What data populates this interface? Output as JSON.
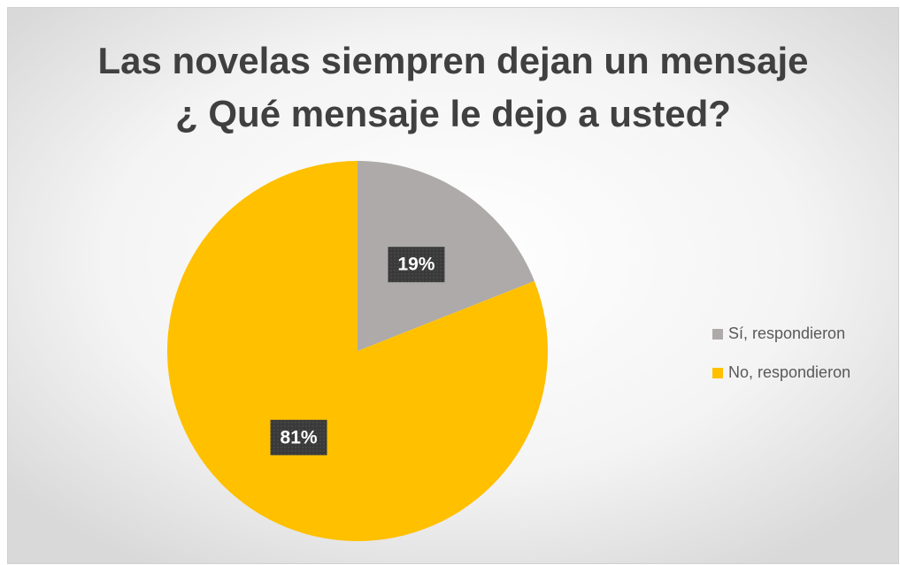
{
  "chart_data": {
    "type": "pie",
    "title": [
      "Las novelas siempren dejan un mensaje",
      "¿ Qué mensaje le dejo a usted?"
    ],
    "categories": [
      "Sí, respondieron",
      "No, respondieron"
    ],
    "values": [
      19,
      81
    ],
    "value_labels": [
      "19%",
      "81%"
    ],
    "colors": [
      "#aeaaaa",
      "#ffc000"
    ],
    "legend": "right"
  }
}
